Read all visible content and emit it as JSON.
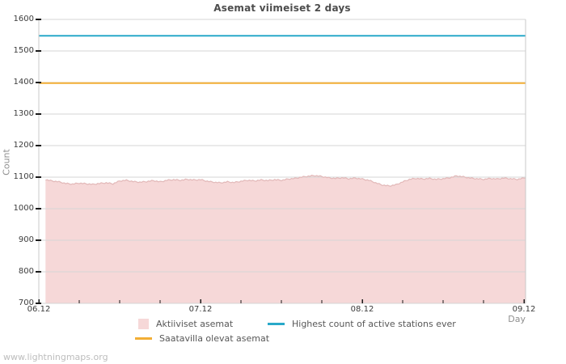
{
  "title": "Asemat viimeiset 2 days",
  "watermark": "www.lightningmaps.org",
  "axes": {
    "y_label": "Count",
    "x_label": "Day"
  },
  "legend": {
    "items": [
      {
        "label": "Aktiiviset asemat",
        "swatch": "square",
        "color": "#f6d8d8"
      },
      {
        "label": "Saatavilla olevat asemat",
        "swatch": "line",
        "color": "#f2ae35"
      },
      {
        "label": "Highest count of active stations ever",
        "swatch": "line",
        "color": "#29a9c9"
      }
    ]
  },
  "colors": {
    "grid": "#d6d6d6",
    "plot_border": "#c9c9c9",
    "tick": "#1a1a1a",
    "area_fill": "#f6d8d8",
    "area_edge": "#e2b8b8",
    "available_line": "#f2ae35",
    "highest_line": "#29a9c9",
    "title_text": "#4d4d4d",
    "axis_text": "#3c3c3c",
    "muted_text": "#8f8f8f",
    "watermark_text": "#bdbdbd"
  },
  "chart_data": {
    "type": "area",
    "title": "Asemat viimeiset 2 days",
    "xlabel": "Day",
    "ylabel": "Count",
    "ylim": [
      700,
      1600
    ],
    "y_ticks": [
      700,
      800,
      900,
      1000,
      1100,
      1200,
      1300,
      1400,
      1500,
      1600
    ],
    "x_ticks": [
      "06.12",
      "07.12",
      "08.12",
      "09.12"
    ],
    "x_range_days": 3,
    "x_minor_ticks_per_day": 4,
    "grid": "horizontal-only",
    "legend_position": "bottom",
    "series": [
      {
        "name": "Aktiiviset asemat",
        "type": "area",
        "color": "#f6d8d8",
        "edge_color": "#e2b8b8",
        "x_start_hours": 1,
        "x_step_hours": 1,
        "values": [
          1092,
          1088,
          1085,
          1080,
          1078,
          1081,
          1079,
          1077,
          1080,
          1082,
          1079,
          1088,
          1090,
          1086,
          1084,
          1086,
          1089,
          1085,
          1090,
          1092,
          1090,
          1093,
          1091,
          1092,
          1087,
          1084,
          1082,
          1085,
          1083,
          1087,
          1090,
          1088,
          1091,
          1089,
          1092,
          1090,
          1094,
          1096,
          1100,
          1103,
          1105,
          1102,
          1098,
          1096,
          1098,
          1095,
          1097,
          1094,
          1090,
          1082,
          1075,
          1072,
          1076,
          1085,
          1093,
          1096,
          1094,
          1096,
          1093,
          1095,
          1098,
          1104,
          1101,
          1097,
          1095,
          1093,
          1096,
          1094,
          1097,
          1095,
          1093,
          1097
        ]
      },
      {
        "name": "Saatavilla olevat asemat",
        "type": "line",
        "color": "#f2ae35",
        "value": 1398
      },
      {
        "name": "Highest count of active stations ever",
        "type": "line",
        "color": "#29a9c9",
        "value": 1548
      }
    ]
  }
}
